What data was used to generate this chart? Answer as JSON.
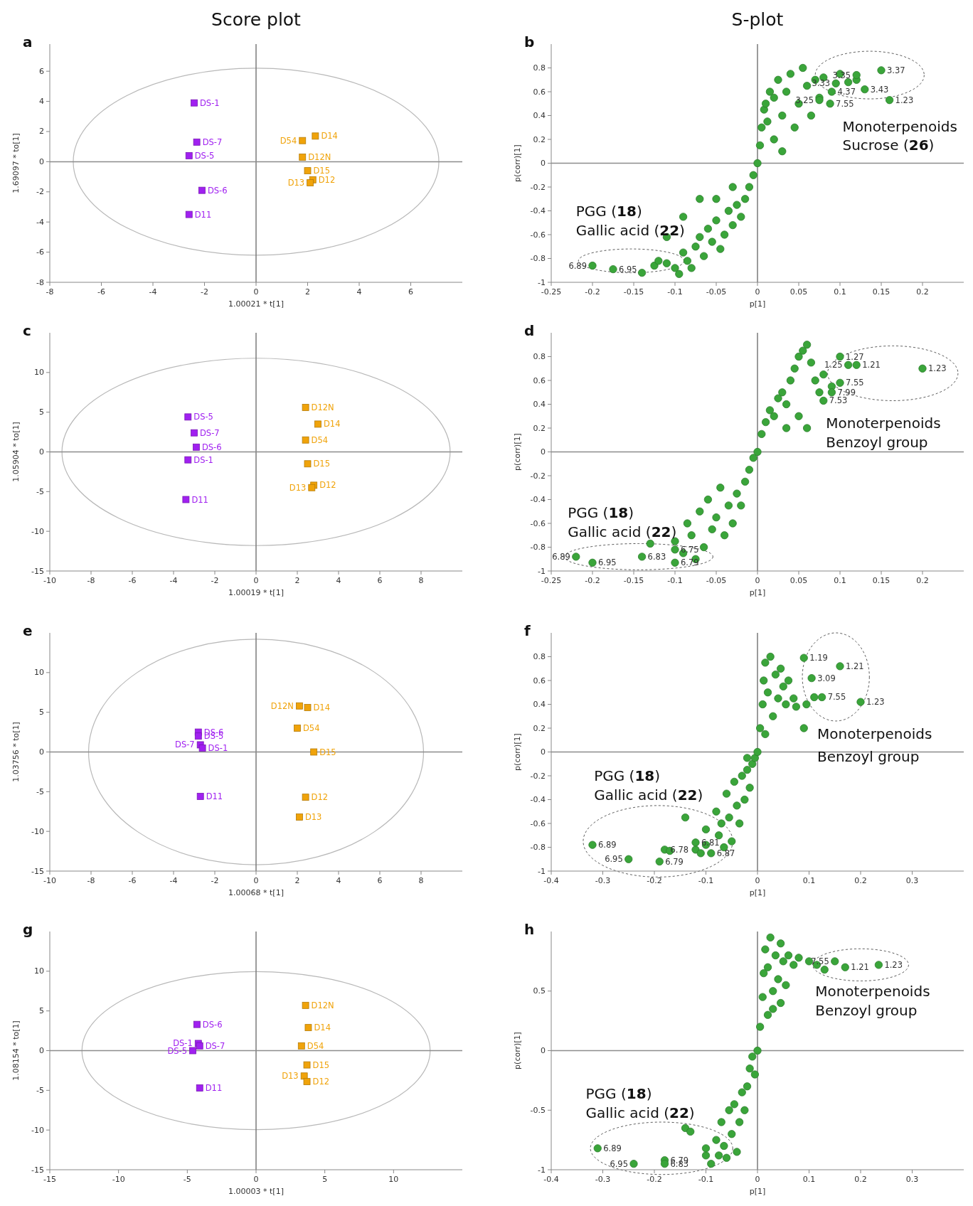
{
  "chart_data": [
    {
      "type": "scatter",
      "title": "Score plot",
      "subtitle": "a",
      "xlabel": "1.00021 * t[1]",
      "ylabel": "1.69097 * to[1]",
      "xlim": [
        -8,
        8
      ],
      "ylim": [
        -8,
        7.8
      ],
      "xticks": [
        -8,
        -6,
        -4,
        -2,
        0,
        2,
        4,
        6
      ],
      "yticks": [
        -8,
        -6,
        -4,
        -2,
        0,
        2,
        4,
        6
      ],
      "marker": "square",
      "ref_lines": [
        {
          "axis": "x",
          "value": 0,
          "color": "#7a7a7a"
        },
        {
          "axis": "y",
          "value": 0,
          "color": "#8c8c8c"
        }
      ],
      "series": [
        {
          "color": "#a020f0",
          "x": [
            -2.4,
            -2.3,
            -2.6,
            -2.1,
            -2.6
          ],
          "values": [
            3.9,
            1.3,
            0.4,
            -1.9,
            -3.5
          ]
        },
        {
          "color": "#f0a30a",
          "x": [
            1.8,
            2.3,
            1.8,
            2,
            2.2,
            2.1
          ],
          "values": [
            1.4,
            1.7,
            0.3,
            -0.6,
            -1.2,
            -1.4
          ]
        }
      ],
      "annotations": [
        {
          "text": "DS-1",
          "x": -2.4,
          "y": 3.9
        },
        {
          "text": "DS-7",
          "x": -2.3,
          "y": 1.3
        },
        {
          "text": "DS-5",
          "x": -2.6,
          "y": 0.4
        },
        {
          "text": "DS-6",
          "x": -2.1,
          "y": -1.9
        },
        {
          "text": "D11",
          "x": -2.6,
          "y": -3.5
        },
        {
          "text": "D54",
          "x": 1.8,
          "y": 1.4
        },
        {
          "text": "D14",
          "x": 2.3,
          "y": 1.7
        },
        {
          "text": "D12N",
          "x": 1.8,
          "y": 0.3
        },
        {
          "text": "D15",
          "x": 2,
          "y": -0.6
        },
        {
          "text": "D12",
          "x": 2.2,
          "y": -1.2
        },
        {
          "text": "D13",
          "x": 2.1,
          "y": -1.4
        }
      ]
    },
    {
      "type": "scatter",
      "title": "S-plot",
      "subtitle": "b",
      "xlabel": "p[1]",
      "ylabel": "p(corr)[1]",
      "xlim": [
        -0.25,
        0.25
      ],
      "ylim": [
        -1,
        1
      ],
      "xticks": [
        -0.25,
        -0.2,
        -0.15,
        -0.1,
        -0.05,
        0,
        0.05,
        0.1,
        0.15,
        0.2
      ],
      "yticks": [
        -1,
        -0.8,
        -0.6,
        -0.4,
        -0.2,
        0,
        0.2,
        0.4,
        0.6,
        0.8
      ],
      "marker": "circle",
      "ref_lines": [
        {
          "axis": "x",
          "value": 0,
          "color": "#7a7a7a"
        },
        {
          "axis": "y",
          "value": 0,
          "color": "#8c8c8c"
        }
      ],
      "series": [
        {
          "color": "#3aa53a",
          "x": [
            -0.2,
            -0.175,
            -0.14,
            -0.125,
            -0.12,
            -0.11,
            -0.11,
            -0.1,
            -0.095,
            -0.09,
            -0.09,
            -0.085,
            -0.08,
            -0.075,
            -0.07,
            -0.07,
            -0.065,
            -0.06,
            -0.055,
            -0.05,
            -0.05,
            -0.045,
            -0.04,
            -0.035,
            -0.03,
            -0.03,
            -0.025,
            -0.02,
            -0.015,
            -0.01,
            -0.005,
            0,
            0.003,
            0.005,
            0.008,
            0.01,
            0.012,
            0.015,
            0.02,
            0.02,
            0.025,
            0.03,
            0.03,
            0.035,
            0.04,
            0.045,
            0.05,
            0.055,
            0.06,
            0.065,
            0.07,
            0.075,
            0.08,
            0.09,
            0.1,
            0.11,
            0.12,
            0.13,
            0.15,
            0.16,
            0.088,
            0.075,
            0.095,
            0.12
          ],
          "values": [
            -0.86,
            -0.89,
            -0.92,
            -0.86,
            -0.82,
            -0.84,
            -0.62,
            -0.88,
            -0.93,
            -0.75,
            -0.45,
            -0.82,
            -0.88,
            -0.7,
            -0.62,
            -0.3,
            -0.78,
            -0.55,
            -0.66,
            -0.48,
            -0.3,
            -0.72,
            -0.6,
            -0.4,
            -0.52,
            -0.2,
            -0.35,
            -0.45,
            -0.3,
            -0.2,
            -0.1,
            0,
            0.15,
            0.3,
            0.45,
            0.5,
            0.35,
            0.6,
            0.55,
            0.2,
            0.7,
            0.4,
            0.1,
            0.6,
            0.75,
            0.3,
            0.5,
            0.8,
            0.65,
            0.4,
            0.7,
            0.55,
            0.72,
            0.6,
            0.75,
            0.68,
            0.7,
            0.62,
            0.78,
            0.53,
            0.5,
            0.53,
            0.67,
            0.74
          ]
        }
      ],
      "annotations": [
        {
          "text": "3.37",
          "x": 0.15,
          "y": 0.78
        },
        {
          "text": "1.23",
          "x": 0.16,
          "y": 0.53
        },
        {
          "text": "3.43",
          "x": 0.13,
          "y": 0.62
        },
        {
          "text": "7.55",
          "x": 0.088,
          "y": 0.5
        },
        {
          "text": "3.25",
          "x": 0.075,
          "y": 0.53
        },
        {
          "text": "4.37",
          "x": 0.09,
          "y": 0.6
        },
        {
          "text": "3.33",
          "x": 0.095,
          "y": 0.67
        },
        {
          "text": "3.35",
          "x": 0.12,
          "y": 0.74
        },
        {
          "text": "6.89",
          "x": -0.2,
          "y": -0.86
        },
        {
          "text": "6.95",
          "x": -0.175,
          "y": -0.89
        },
        "Monoterpenoids",
        "Sucrose (26)",
        "PGG (18)",
        "Gallic acid (22)"
      ]
    },
    {
      "type": "scatter",
      "subtitle": "c",
      "xlabel": "1.00019 * t[1]",
      "ylabel": "1.05904 * to[1]",
      "xlim": [
        -10,
        10
      ],
      "ylim": [
        -15,
        15
      ],
      "xticks": [
        -10,
        -8,
        -6,
        -4,
        -2,
        0,
        2,
        4,
        6,
        8
      ],
      "yticks": [
        -15,
        -10,
        -5,
        0,
        5,
        10
      ],
      "marker": "square",
      "ref_lines": [
        {
          "axis": "x",
          "value": 0,
          "color": "#7a7a7a"
        },
        {
          "axis": "y",
          "value": 0,
          "color": "#8c8c8c"
        }
      ],
      "series": [
        {
          "color": "#a020f0",
          "x": [
            -3.3,
            -3,
            -2.9,
            -3.3,
            -3.4
          ],
          "values": [
            4.4,
            2.4,
            0.6,
            -1,
            -6
          ]
        },
        {
          "color": "#f0a30a",
          "x": [
            2.4,
            3,
            2.4,
            2.5,
            2.8,
            2.7
          ],
          "values": [
            5.6,
            3.5,
            1.5,
            -1.5,
            -4.2,
            -4.5
          ]
        }
      ],
      "annotations": [
        {
          "text": "DS-5",
          "x": -3.3,
          "y": 4.4
        },
        {
          "text": "DS-7",
          "x": -3,
          "y": 2.4
        },
        {
          "text": "DS-6",
          "x": -2.9,
          "y": 0.6
        },
        {
          "text": "DS-1",
          "x": -3.3,
          "y": -1
        },
        {
          "text": "D11",
          "x": -3.4,
          "y": -6
        },
        {
          "text": "D12N",
          "x": 2.4,
          "y": 5.6
        },
        {
          "text": "D14",
          "x": 3,
          "y": 3.5
        },
        {
          "text": "D54",
          "x": 2.4,
          "y": 1.5
        },
        {
          "text": "D15",
          "x": 2.5,
          "y": -1.5
        },
        {
          "text": "D12",
          "x": 2.8,
          "y": -4.2
        },
        {
          "text": "D13",
          "x": 2.7,
          "y": -4.5
        }
      ]
    },
    {
      "type": "scatter",
      "subtitle": "d",
      "xlabel": "p[1]",
      "ylabel": "p(corr)[1]",
      "xlim": [
        -0.25,
        0.25
      ],
      "ylim": [
        -1,
        1
      ],
      "xticks": [
        -0.25,
        -0.2,
        -0.15,
        -0.1,
        -0.05,
        0,
        0.05,
        0.1,
        0.15,
        0.2
      ],
      "yticks": [
        -1,
        -0.8,
        -0.6,
        -0.4,
        -0.2,
        0,
        0.2,
        0.4,
        0.6,
        0.8
      ],
      "marker": "circle",
      "ref_lines": [
        {
          "axis": "x",
          "value": 0,
          "color": "#7a7a7a"
        },
        {
          "axis": "y",
          "value": 0,
          "color": "#8c8c8c"
        }
      ],
      "series": [
        {
          "color": "#3aa53a",
          "x": [
            -0.22,
            -0.2,
            -0.14,
            -0.13,
            -0.1,
            -0.1,
            -0.09,
            -0.085,
            -0.08,
            -0.075,
            -0.07,
            -0.065,
            -0.06,
            -0.055,
            -0.05,
            -0.045,
            -0.04,
            -0.035,
            -0.03,
            -0.025,
            -0.02,
            -0.015,
            -0.01,
            -0.005,
            0,
            0.005,
            0.01,
            0.015,
            0.02,
            0.025,
            0.03,
            0.035,
            0.035,
            0.04,
            0.045,
            0.05,
            0.05,
            0.055,
            0.06,
            0.06,
            0.065,
            0.07,
            0.075,
            0.08,
            0.08,
            0.09,
            0.09,
            0.1,
            0.11,
            0.12,
            0.2,
            0.1,
            -0.1
          ],
          "values": [
            -0.88,
            -0.93,
            -0.88,
            -0.77,
            -0.75,
            -0.93,
            -0.85,
            -0.6,
            -0.7,
            -0.9,
            -0.5,
            -0.8,
            -0.4,
            -0.65,
            -0.55,
            -0.3,
            -0.7,
            -0.45,
            -0.6,
            -0.35,
            -0.45,
            -0.25,
            -0.15,
            -0.05,
            0,
            0.15,
            0.25,
            0.35,
            0.3,
            0.45,
            0.5,
            0.4,
            0.2,
            0.6,
            0.7,
            0.8,
            0.3,
            0.85,
            0.9,
            0.2,
            0.75,
            0.6,
            0.5,
            0.65,
            0.43,
            0.55,
            0.5,
            0.8,
            0.73,
            0.73,
            0.7,
            0.58,
            -0.82
          ]
        }
      ],
      "annotations": [
        {
          "text": "1.27",
          "x": 0.1,
          "y": 0.8
        },
        {
          "text": "1.25",
          "x": 0.11,
          "y": 0.73
        },
        {
          "text": "1.21",
          "x": 0.12,
          "y": 0.73
        },
        {
          "text": "1.23",
          "x": 0.2,
          "y": 0.7
        },
        {
          "text": "7.55",
          "x": 0.1,
          "y": 0.58
        },
        {
          "text": "7.99",
          "x": 0.09,
          "y": 0.5
        },
        {
          "text": "7.53",
          "x": 0.08,
          "y": 0.43
        },
        {
          "text": "6.89",
          "x": -0.22,
          "y": -0.88
        },
        {
          "text": "6.95",
          "x": -0.2,
          "y": -0.93
        },
        {
          "text": "6.83",
          "x": -0.14,
          "y": -0.88
        },
        {
          "text": "6.75",
          "x": -0.1,
          "y": -0.82
        },
        {
          "text": "6.79",
          "x": -0.1,
          "y": -0.93
        },
        "Monoterpenoids",
        "Benzoyl group",
        "PGG (18)",
        "Gallic acid (22)"
      ]
    },
    {
      "type": "scatter",
      "subtitle": "e",
      "xlabel": "1.00068 * t[1]",
      "ylabel": "1.03756 * to[1]",
      "xlim": [
        -10,
        10
      ],
      "ylim": [
        -15,
        15
      ],
      "xticks": [
        -10,
        -8,
        -6,
        -4,
        -2,
        0,
        2,
        4,
        6,
        8
      ],
      "yticks": [
        -15,
        -10,
        -5,
        0,
        5,
        10
      ],
      "marker": "square",
      "ref_lines": [
        {
          "axis": "x",
          "value": 0,
          "color": "#7a7a7a"
        },
        {
          "axis": "y",
          "value": 0,
          "color": "#8c8c8c"
        }
      ],
      "series": [
        {
          "color": "#a020f0",
          "x": [
            -2.8,
            -2.8,
            -2.7,
            -2.6,
            -2.7
          ],
          "values": [
            2.5,
            2,
            0.9,
            0.5,
            -5.6
          ]
        },
        {
          "color": "#f0a30a",
          "x": [
            2.1,
            2.5,
            2,
            2.8,
            2.4,
            2.1
          ],
          "values": [
            5.8,
            5.6,
            3,
            0,
            -5.7,
            -8.2
          ]
        }
      ],
      "annotations": [
        {
          "text": "DS-6",
          "x": -2.8,
          "y": 2.5
        },
        {
          "text": "DS-5",
          "x": -2.8,
          "y": 2
        },
        {
          "text": "DS-7",
          "x": -2.7,
          "y": 0.9
        },
        {
          "text": "DS-1",
          "x": -2.6,
          "y": 0.5
        },
        {
          "text": "D11",
          "x": -2.7,
          "y": -5.6
        },
        {
          "text": "D12N",
          "x": 2.1,
          "y": 5.8
        },
        {
          "text": "D14",
          "x": 2.5,
          "y": 5.6
        },
        {
          "text": "D54",
          "x": 2,
          "y": 3
        },
        {
          "text": "D15",
          "x": 2.8,
          "y": 0
        },
        {
          "text": "D12",
          "x": 2.4,
          "y": -5.7
        },
        {
          "text": "D13",
          "x": 2.1,
          "y": -8.2
        }
      ]
    },
    {
      "type": "scatter",
      "subtitle": "f",
      "xlabel": "p[1]",
      "ylabel": "p(corr)[1]",
      "xlim": [
        -0.4,
        0.4
      ],
      "ylim": [
        -1,
        1
      ],
      "xticks": [
        -0.4,
        -0.3,
        -0.2,
        -0.1,
        0,
        0.1,
        0.2,
        0.3
      ],
      "yticks": [
        -1,
        -0.8,
        -0.6,
        -0.4,
        -0.2,
        0,
        0.2,
        0.4,
        0.6,
        0.8
      ],
      "marker": "circle",
      "ref_lines": [
        {
          "axis": "x",
          "value": 0,
          "color": "#7a7a7a"
        },
        {
          "axis": "y",
          "value": 0,
          "color": "#8c8c8c"
        }
      ],
      "series": [
        {
          "color": "#3aa53a",
          "x": [
            -0.32,
            -0.25,
            -0.19,
            -0.18,
            -0.17,
            -0.14,
            -0.12,
            -0.11,
            -0.1,
            -0.1,
            -0.09,
            -0.08,
            -0.075,
            -0.07,
            -0.065,
            -0.06,
            -0.055,
            -0.05,
            -0.045,
            -0.04,
            -0.035,
            -0.03,
            -0.025,
            -0.02,
            -0.02,
            -0.015,
            -0.01,
            -0.005,
            0,
            0.005,
            0.01,
            0.012,
            0.015,
            0.015,
            0.02,
            0.025,
            0.03,
            0.035,
            0.04,
            0.045,
            0.05,
            0.055,
            0.06,
            0.07,
            0.075,
            0.09,
            0.09,
            0.095,
            0.105,
            0.11,
            0.16,
            0.2,
            0.125,
            -0.12
          ],
          "values": [
            -0.78,
            -0.9,
            -0.92,
            -0.82,
            -0.83,
            -0.55,
            -0.82,
            -0.85,
            -0.65,
            -0.78,
            -0.85,
            -0.5,
            -0.7,
            -0.6,
            -0.8,
            -0.35,
            -0.55,
            -0.75,
            -0.25,
            -0.45,
            -0.6,
            -0.2,
            -0.4,
            -0.15,
            -0.05,
            -0.3,
            -0.1,
            -0.05,
            0,
            0.2,
            0.4,
            0.6,
            0.75,
            0.15,
            0.5,
            0.8,
            0.3,
            0.65,
            0.45,
            0.7,
            0.55,
            0.4,
            0.6,
            0.45,
            0.38,
            0.79,
            0.2,
            0.4,
            0.62,
            0.46,
            0.72,
            0.42,
            0.46,
            -0.76
          ]
        }
      ],
      "annotations": [
        {
          "text": "1.19",
          "x": 0.09,
          "y": 0.79
        },
        {
          "text": "1.21",
          "x": 0.16,
          "y": 0.72
        },
        {
          "text": "3.09",
          "x": 0.105,
          "y": 0.62
        },
        {
          "text": "7.55",
          "x": 0.125,
          "y": 0.46
        },
        {
          "text": "1.23",
          "x": 0.2,
          "y": 0.42
        },
        {
          "text": "6.89",
          "x": -0.32,
          "y": -0.78
        },
        {
          "text": "6.95",
          "x": -0.25,
          "y": -0.9
        },
        {
          "text": "6.79",
          "x": -0.19,
          "y": -0.92
        },
        {
          "text": "6.78",
          "x": -0.18,
          "y": -0.82
        },
        {
          "text": "6.81",
          "x": -0.12,
          "y": -0.76
        },
        {
          "text": "6.87",
          "x": -0.09,
          "y": -0.85
        },
        "Monoterpenoids",
        "Benzoyl group",
        "PGG (18)",
        "Gallic acid (22)"
      ]
    },
    {
      "type": "scatter",
      "subtitle": "g",
      "xlabel": "1.00003 * t[1]",
      "ylabel": "1.08154 * to[1]",
      "xlim": [
        -15,
        15
      ],
      "ylim": [
        -15,
        15
      ],
      "xticks": [
        -15,
        -10,
        -5,
        0,
        5,
        10
      ],
      "yticks": [
        -15,
        -10,
        -5,
        0,
        5,
        10
      ],
      "marker": "square",
      "ref_lines": [
        {
          "axis": "x",
          "value": 0,
          "color": "#7a7a7a"
        },
        {
          "axis": "y",
          "value": 0,
          "color": "#8c8c8c"
        }
      ],
      "series": [
        {
          "color": "#a020f0",
          "x": [
            -4.3,
            -4.2,
            -4.1,
            -4.6,
            -4.1
          ],
          "values": [
            3.3,
            0.9,
            0.6,
            0,
            -4.7
          ]
        },
        {
          "color": "#f0a30a",
          "x": [
            3.6,
            3.8,
            3.3,
            3.7,
            3.5,
            3.7
          ],
          "values": [
            5.7,
            2.9,
            0.6,
            -1.8,
            -3.2,
            -3.9
          ]
        }
      ],
      "annotations": [
        {
          "text": "DS-6",
          "x": -4.3,
          "y": 3.3
        },
        {
          "text": "DS-1",
          "x": -4.2,
          "y": 0.9
        },
        {
          "text": "DS-7",
          "x": -4.1,
          "y": 0.6
        },
        {
          "text": "DS-5",
          "x": -4.6,
          "y": 0
        },
        {
          "text": "D11",
          "x": -4.1,
          "y": -4.7
        },
        {
          "text": "D12N",
          "x": 3.6,
          "y": 5.7
        },
        {
          "text": "D14",
          "x": 3.8,
          "y": 2.9
        },
        {
          "text": "D54",
          "x": 3.3,
          "y": 0.6
        },
        {
          "text": "D15",
          "x": 3.7,
          "y": -1.8
        },
        {
          "text": "D13",
          "x": 3.5,
          "y": -3.2
        },
        {
          "text": "D12",
          "x": 3.7,
          "y": -3.9
        }
      ]
    },
    {
      "type": "scatter",
      "subtitle": "h",
      "xlabel": "p[1]",
      "ylabel": "p(corr)[1]",
      "xlim": [
        -0.4,
        0.4
      ],
      "ylim": [
        -1,
        1
      ],
      "xticks": [
        -0.4,
        -0.3,
        -0.2,
        -0.1,
        0,
        0.1,
        0.2,
        0.3
      ],
      "yticks": [
        -1,
        -0.5,
        0,
        0.5
      ],
      "marker": "circle",
      "ref_lines": [
        {
          "axis": "x",
          "value": 0,
          "color": "#7a7a7a"
        },
        {
          "axis": "y",
          "value": 0,
          "color": "#8c8c8c"
        }
      ],
      "series": [
        {
          "color": "#3aa53a",
          "x": [
            -0.31,
            -0.24,
            -0.18,
            -0.18,
            -0.14,
            -0.13,
            -0.1,
            -0.1,
            -0.09,
            -0.08,
            -0.075,
            -0.07,
            -0.065,
            -0.06,
            -0.055,
            -0.05,
            -0.045,
            -0.04,
            -0.035,
            -0.03,
            -0.025,
            -0.02,
            -0.015,
            -0.01,
            -0.005,
            0,
            0.005,
            0.01,
            0.012,
            0.015,
            0.02,
            0.02,
            0.025,
            0.03,
            0.03,
            0.035,
            0.04,
            0.045,
            0.045,
            0.05,
            0.055,
            0.06,
            0.07,
            0.08,
            0.1,
            0.115,
            0.13,
            0.15,
            0.235,
            0.17
          ],
          "values": [
            -0.82,
            -0.95,
            -0.92,
            -0.95,
            -0.65,
            -0.68,
            -0.88,
            -0.82,
            -0.95,
            -0.75,
            -0.88,
            -0.6,
            -0.8,
            -0.9,
            -0.5,
            -0.7,
            -0.45,
            -0.85,
            -0.6,
            -0.35,
            -0.5,
            -0.3,
            -0.15,
            -0.05,
            -0.2,
            0,
            0.2,
            0.45,
            0.65,
            0.85,
            0.7,
            0.3,
            0.95,
            0.5,
            0.35,
            0.8,
            0.6,
            0.9,
            0.4,
            0.75,
            0.55,
            0.8,
            0.72,
            0.78,
            0.75,
            0.72,
            0.68,
            0.75,
            0.72,
            0.7
          ]
        }
      ],
      "annotations": [
        {
          "text": "7.55",
          "x": 0.15,
          "y": 0.75
        },
        {
          "text": "1.23",
          "x": 0.235,
          "y": 0.72
        },
        {
          "text": "1.21",
          "x": 0.17,
          "y": 0.7
        },
        {
          "text": "6.89",
          "x": -0.31,
          "y": -0.82
        },
        {
          "text": "6.95",
          "x": -0.24,
          "y": -0.95
        },
        {
          "text": "6.79",
          "x": -0.18,
          "y": -0.92
        },
        {
          "text": "6.83",
          "x": -0.18,
          "y": -0.95
        },
        "Monoterpenoids",
        "Benzoyl group",
        "PGG (18)",
        "Gallic acid (22)"
      ]
    }
  ]
}
